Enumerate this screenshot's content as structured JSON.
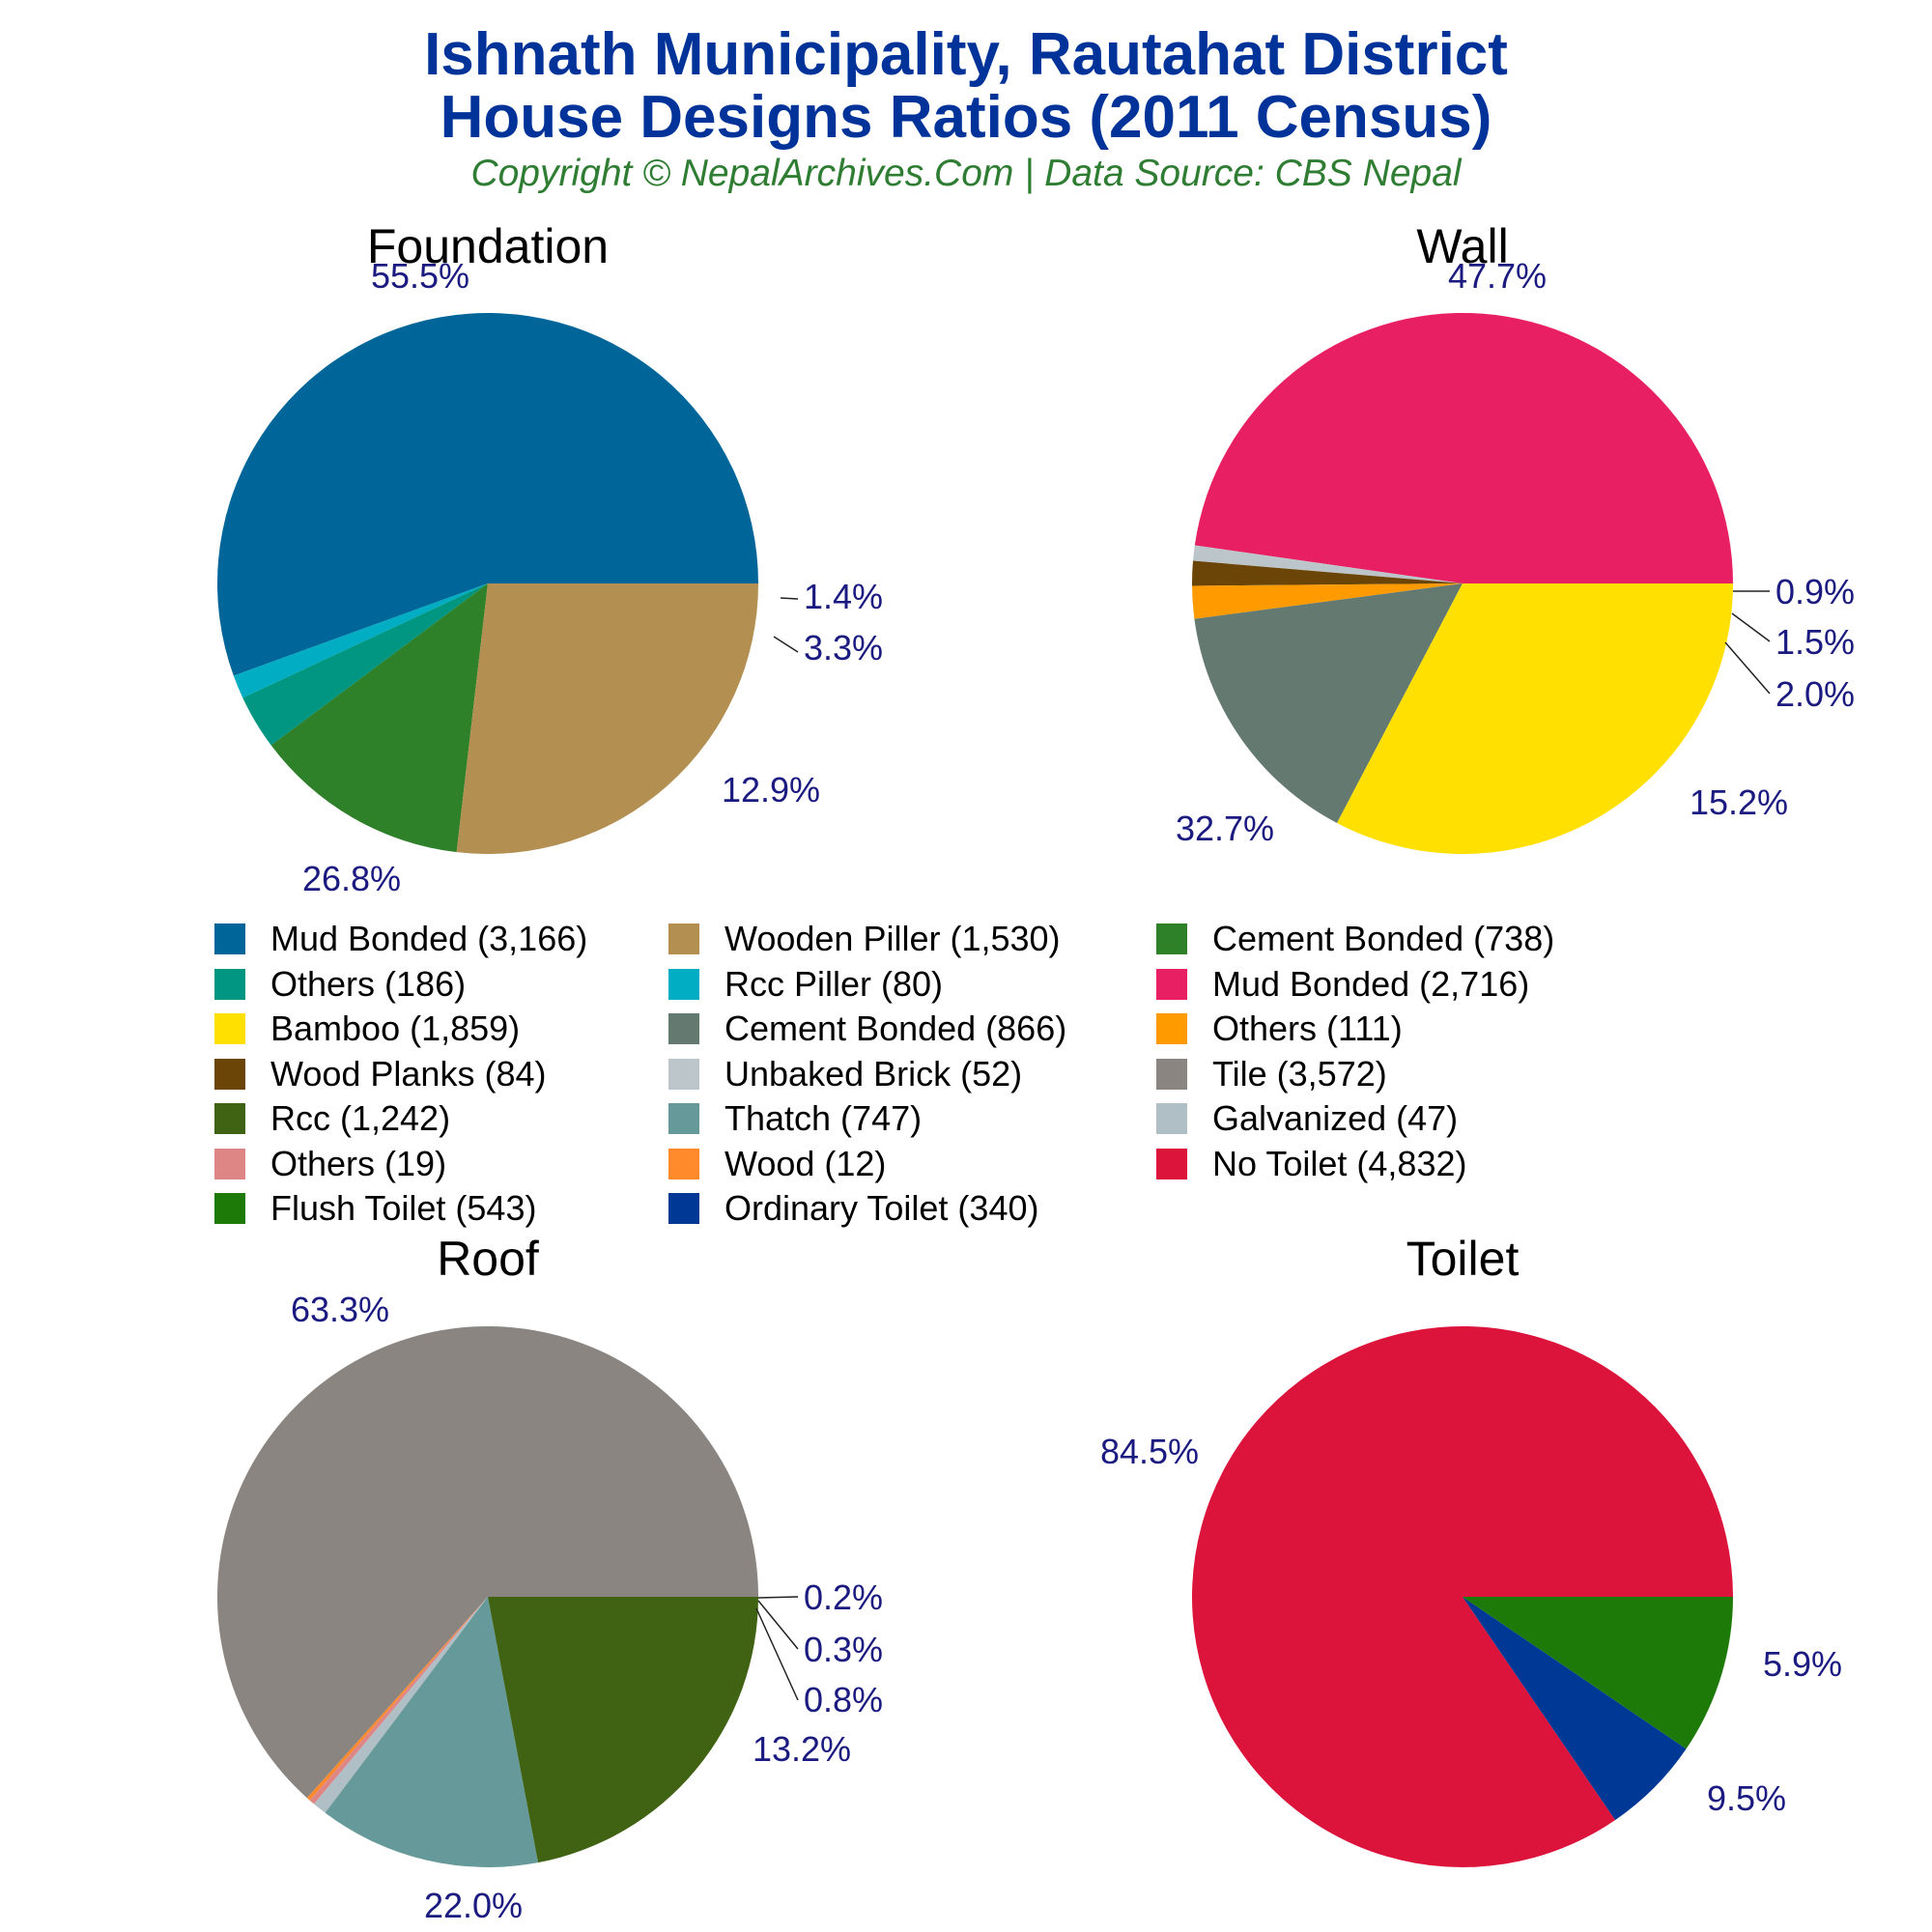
{
  "header": {
    "title_line1": "Ishnath Municipality, Rautahat District",
    "title_line2": "House Designs Ratios (2011 Census)",
    "subtitle": "Copyright © NepalArchives.Com | Data Source: CBS Nepal"
  },
  "legend": [
    {
      "label": "Mud Bonded (3,166)",
      "color": "#006699"
    },
    {
      "label": "Wooden Piller (1,530)",
      "color": "#b38f52"
    },
    {
      "label": "Cement Bonded (738)",
      "color": "#2e8029"
    },
    {
      "label": "Others (186)",
      "color": "#009682"
    },
    {
      "label": "Rcc Piller (80)",
      "color": "#00adc2"
    },
    {
      "label": "Mud Bonded (2,716)",
      "color": "#e82063"
    },
    {
      "label": "Bamboo (1,859)",
      "color": "#ffe000"
    },
    {
      "label": "Cement Bonded (866)",
      "color": "#647a70"
    },
    {
      "label": "Others (111)",
      "color": "#ff9a00"
    },
    {
      "label": "Wood Planks (84)",
      "color": "#6b4508"
    },
    {
      "label": "Unbaked Brick (52)",
      "color": "#bcc5c9"
    },
    {
      "label": "Tile (3,572)",
      "color": "#8a8581"
    },
    {
      "label": "Rcc (1,242)",
      "color": "#3f6313"
    },
    {
      "label": "Thatch (747)",
      "color": "#669999"
    },
    {
      "label": "Galvanized (47)",
      "color": "#b0bec5"
    },
    {
      "label": "Others (19)",
      "color": "#de8585"
    },
    {
      "label": "Wood (12)",
      "color": "#ff8a2b"
    },
    {
      "label": "No Toilet (4,832)",
      "color": "#dc143c"
    },
    {
      "label": "Flush Toilet (543)",
      "color": "#1e7a08"
    },
    {
      "label": "Ordinary Toilet (340)",
      "color": "#003896"
    }
  ],
  "chart_data": [
    {
      "type": "pie",
      "title": "Foundation",
      "slices": [
        {
          "label": "Mud Bonded",
          "value": 3166,
          "pct_label": "55.5%",
          "color": "#006699"
        },
        {
          "label": "Rcc Piller",
          "value": 80,
          "pct_label": "1.4%",
          "color": "#00adc2"
        },
        {
          "label": "Others",
          "value": 186,
          "pct_label": "3.3%",
          "color": "#009682"
        },
        {
          "label": "Cement Bonded",
          "value": 738,
          "pct_label": "12.9%",
          "color": "#2e8029"
        },
        {
          "label": "Wooden Piller",
          "value": 1530,
          "pct_label": "26.8%",
          "color": "#b38f52"
        }
      ]
    },
    {
      "type": "pie",
      "title": "Wall",
      "slices": [
        {
          "label": "Mud Bonded",
          "value": 2716,
          "pct_label": "47.7%",
          "color": "#e82063"
        },
        {
          "label": "Unbaked Brick",
          "value": 52,
          "pct_label": "0.9%",
          "color": "#bcc5c9"
        },
        {
          "label": "Wood Planks",
          "value": 84,
          "pct_label": "1.5%",
          "color": "#6b4508"
        },
        {
          "label": "Others",
          "value": 111,
          "pct_label": "2.0%",
          "color": "#ff9a00"
        },
        {
          "label": "Cement Bonded",
          "value": 866,
          "pct_label": "15.2%",
          "color": "#647a70"
        },
        {
          "label": "Bamboo",
          "value": 1859,
          "pct_label": "32.7%",
          "color": "#ffe000"
        }
      ]
    },
    {
      "type": "pie",
      "title": "Roof",
      "slices": [
        {
          "label": "Tile",
          "value": 3572,
          "pct_label": "63.3%",
          "color": "#8a8581"
        },
        {
          "label": "Wood",
          "value": 12,
          "pct_label": "0.2%",
          "color": "#ff8a2b"
        },
        {
          "label": "Others",
          "value": 19,
          "pct_label": "0.3%",
          "color": "#de8585"
        },
        {
          "label": "Galvanized",
          "value": 47,
          "pct_label": "0.8%",
          "color": "#b0bec5"
        },
        {
          "label": "Thatch",
          "value": 747,
          "pct_label": "13.2%",
          "color": "#669999"
        },
        {
          "label": "Rcc",
          "value": 1242,
          "pct_label": "22.0%",
          "color": "#3f6313"
        }
      ]
    },
    {
      "type": "pie",
      "title": "Toilet",
      "slices": [
        {
          "label": "No Toilet",
          "value": 4832,
          "pct_label": "84.5%",
          "color": "#dc143c"
        },
        {
          "label": "Ordinary Toilet",
          "value": 340,
          "pct_label": "5.9%",
          "color": "#003896"
        },
        {
          "label": "Flush Toilet",
          "value": 543,
          "pct_label": "9.5%",
          "color": "#1e7a08"
        }
      ]
    }
  ]
}
